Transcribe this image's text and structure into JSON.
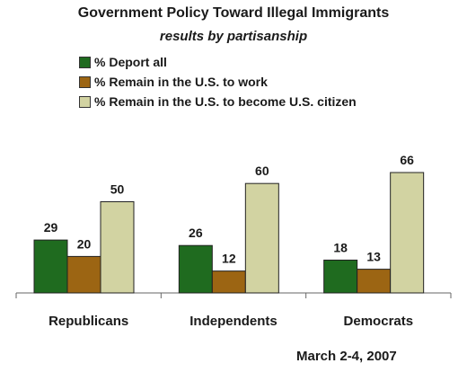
{
  "chart_data": {
    "type": "bar",
    "title": "Government Policy Toward Illegal Immigrants",
    "subtitle": "results by partisanship",
    "categories": [
      "Republicans",
      "Independents",
      "Democrats"
    ],
    "series": [
      {
        "name": "% Deport all",
        "color": "#1f6b1f",
        "values": [
          29,
          26,
          18
        ]
      },
      {
        "name": "% Remain in the U.S. to work",
        "color": "#9c6513",
        "values": [
          20,
          12,
          13
        ]
      },
      {
        "name": "% Remain in the U.S. to become U.S. citizen",
        "color": "#d2d3a2",
        "values": [
          50,
          60,
          66
        ]
      }
    ],
    "ylim": [
      0,
      70
    ],
    "grid": false,
    "legend_position": "top-left",
    "note": "March 2-4, 2007"
  }
}
